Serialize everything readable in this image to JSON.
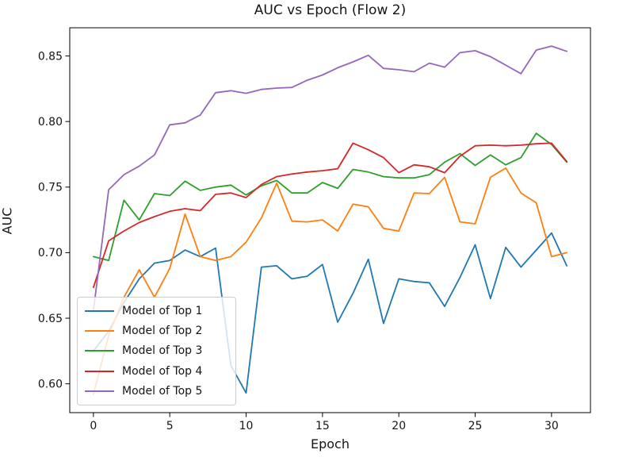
{
  "figure_title": "AUC vs Epoch (Flow 2)",
  "chart_data": {
    "type": "line",
    "title": "AUC vs Epoch (Flow 2)",
    "xlabel": "Epoch",
    "ylabel": "AUC",
    "x": [
      0,
      1,
      2,
      3,
      4,
      5,
      6,
      7,
      8,
      9,
      10,
      11,
      12,
      13,
      14,
      15,
      16,
      17,
      18,
      19,
      20,
      21,
      22,
      23,
      24,
      25,
      26,
      27,
      28,
      29,
      30,
      31
    ],
    "series": [
      {
        "name": "Model of Top 1",
        "color": "#1f77b4",
        "values": [
          0.625,
          0.64,
          0.662,
          0.68,
          0.692,
          0.694,
          0.702,
          0.697,
          0.7035,
          0.614,
          0.593,
          0.689,
          0.69,
          0.68,
          0.682,
          0.691,
          0.647,
          0.669,
          0.695,
          0.646,
          0.68,
          0.678,
          0.677,
          0.659,
          0.681,
          0.706,
          0.665,
          0.704,
          0.689,
          0.702,
          0.715,
          0.69
        ]
      },
      {
        "name": "Model of Top 2",
        "color": "#ff7f0e",
        "values": [
          0.592,
          0.637,
          0.666,
          0.687,
          0.666,
          0.688,
          0.7295,
          0.697,
          0.694,
          0.697,
          0.708,
          0.7265,
          0.753,
          0.724,
          0.7235,
          0.725,
          0.7165,
          0.737,
          0.735,
          0.7185,
          0.7165,
          0.7455,
          0.745,
          0.7575,
          0.7235,
          0.722,
          0.7575,
          0.7645,
          0.7455,
          0.738,
          0.697,
          0.7
        ]
      },
      {
        "name": "Model of Top 3",
        "color": "#2ca02c",
        "values": [
          0.697,
          0.694,
          0.74,
          0.725,
          0.745,
          0.7435,
          0.7545,
          0.7475,
          0.75,
          0.7515,
          0.744,
          0.751,
          0.755,
          0.7455,
          0.7455,
          0.7535,
          0.749,
          0.7635,
          0.7615,
          0.758,
          0.757,
          0.757,
          0.7595,
          0.769,
          0.7755,
          0.7665,
          0.7745,
          0.767,
          0.7725,
          0.791,
          0.7825,
          0.769
        ]
      },
      {
        "name": "Model of Top 4",
        "color": "#d62728",
        "values": [
          0.6735,
          0.709,
          0.7165,
          0.723,
          0.7275,
          0.7315,
          0.7335,
          0.732,
          0.7445,
          0.7455,
          0.742,
          0.752,
          0.758,
          0.76,
          0.7615,
          0.7625,
          0.764,
          0.7835,
          0.7785,
          0.7725,
          0.761,
          0.767,
          0.7655,
          0.761,
          0.7735,
          0.7815,
          0.782,
          0.7815,
          0.782,
          0.783,
          0.7835,
          0.7695
        ]
      },
      {
        "name": "Model of Top 5",
        "color": "#9467bd",
        "values": [
          0.656,
          0.748,
          0.7595,
          0.766,
          0.7745,
          0.7975,
          0.799,
          0.805,
          0.822,
          0.8235,
          0.8215,
          0.8245,
          0.8255,
          0.826,
          0.8315,
          0.8355,
          0.841,
          0.8455,
          0.8505,
          0.8405,
          0.8395,
          0.838,
          0.8445,
          0.8415,
          0.8525,
          0.854,
          0.8495,
          0.843,
          0.8365,
          0.8545,
          0.8575,
          0.8535
        ]
      }
    ],
    "xlim": [
      -1.55,
      32.55
    ],
    "ylim": [
      0.578,
      0.8715
    ],
    "xticks": [
      0,
      5,
      10,
      15,
      20,
      25,
      30
    ],
    "yticks": [
      0.6,
      0.65,
      0.7,
      0.75,
      0.8,
      0.85
    ],
    "grid": false,
    "legend_position": "lower left",
    "legend_labels": [
      "Model of Top 1",
      "Model of Top 2",
      "Model of Top 3",
      "Model of Top 4",
      "Model of Top 5"
    ]
  }
}
